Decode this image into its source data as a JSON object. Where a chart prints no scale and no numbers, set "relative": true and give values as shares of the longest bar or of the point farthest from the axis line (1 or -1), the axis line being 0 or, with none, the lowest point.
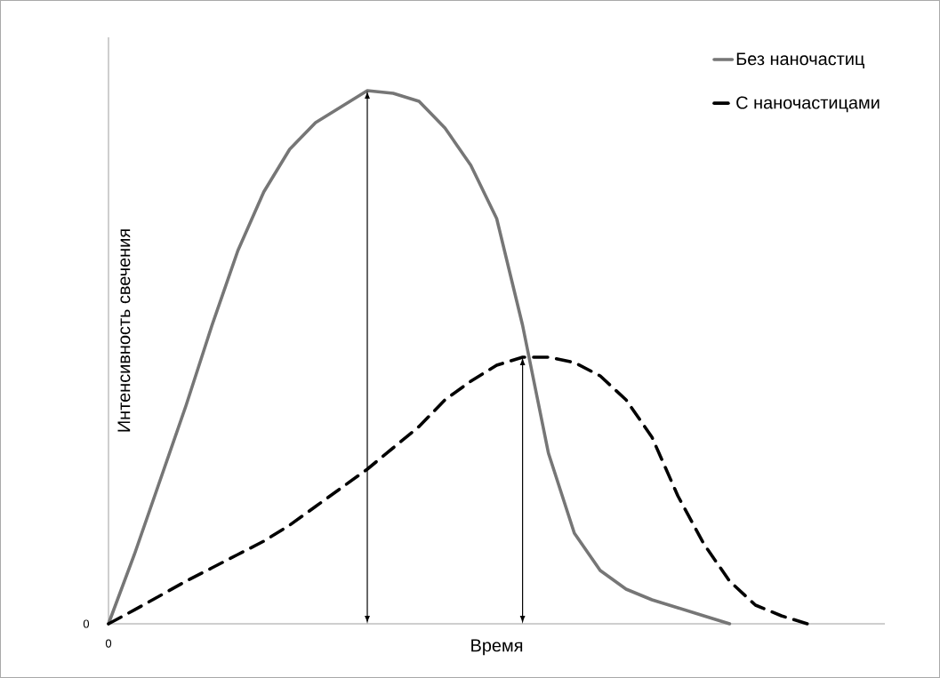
{
  "chart_data": {
    "type": "line",
    "relative": true,
    "xlabel": "Время",
    "ylabel": "Интенсивность свечения",
    "legend": "top right",
    "marker": "none",
    "annotations": [
      "0",
      "0"
    ],
    "categories": [
      null,
      null,
      null,
      null,
      null,
      null,
      null,
      null,
      null,
      null,
      null,
      null,
      null,
      null,
      null,
      null,
      null,
      null,
      null,
      null,
      null,
      null,
      null,
      null,
      null,
      null,
      null,
      null
    ],
    "series": [
      {
        "name": "Без наночастиц",
        "color": "#767676",
        "line_style": "solid",
        "values": [
          0,
          0.13,
          0.27,
          0.41,
          0.56,
          0.7,
          0.81,
          0.89,
          0.94,
          0.97,
          1,
          0.995,
          0.98,
          0.93,
          0.86,
          0.76,
          0.56,
          0.32,
          0.17,
          0.1,
          0.065,
          0.045,
          0.03,
          0.015,
          0,
          null,
          null,
          null
        ]
      },
      {
        "name": "С наночастицами",
        "color": "#000000",
        "line_style": "dashed",
        "values": [
          0,
          0.026,
          0.053,
          0.08,
          0.105,
          0.13,
          0.155,
          0.185,
          0.22,
          0.255,
          0.29,
          0.33,
          0.37,
          0.42,
          0.455,
          0.485,
          0.5,
          0.5,
          0.49,
          0.465,
          0.42,
          0.35,
          0.24,
          0.15,
          0.08,
          0.035,
          0.015,
          0
        ]
      }
    ]
  }
}
